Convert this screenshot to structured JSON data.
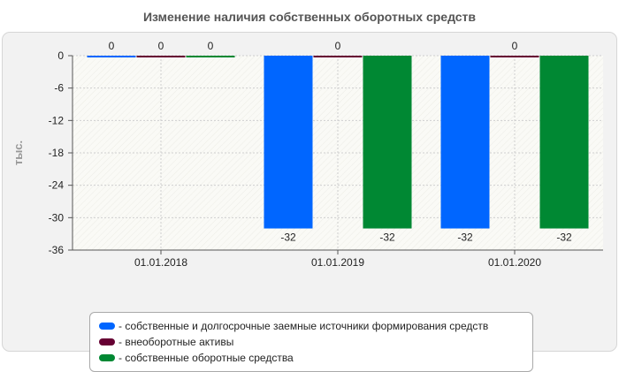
{
  "chart_data": {
    "type": "bar",
    "title": "Изменение наличия собственных оборотных средств",
    "ylabel": "тыс.",
    "xlabel": "",
    "ylim": [
      -36,
      0
    ],
    "yticks": [
      "0",
      "-6",
      "-12",
      "-18",
      "-24",
      "-30",
      "-36"
    ],
    "categories": [
      "01.01.2018",
      "01.01.2019",
      "01.01.2020"
    ],
    "series": [
      {
        "name": "- собственные и долгосрочные заемные источники формирования средств",
        "values": [
          0,
          -32,
          -32
        ],
        "labels": [
          "0",
          "-32",
          "-32"
        ],
        "color": "#0066ff"
      },
      {
        "name": "- внеоборотные активы",
        "values": [
          0,
          0,
          0
        ],
        "labels": [
          "0",
          "0",
          "0"
        ],
        "color": "#660033"
      },
      {
        "name": "- собственные оборотные средства",
        "values": [
          0,
          -32,
          -32
        ],
        "labels": [
          "0",
          "-32",
          "-32"
        ],
        "color": "#008833"
      }
    ],
    "grid": true,
    "legend": "bottom"
  }
}
